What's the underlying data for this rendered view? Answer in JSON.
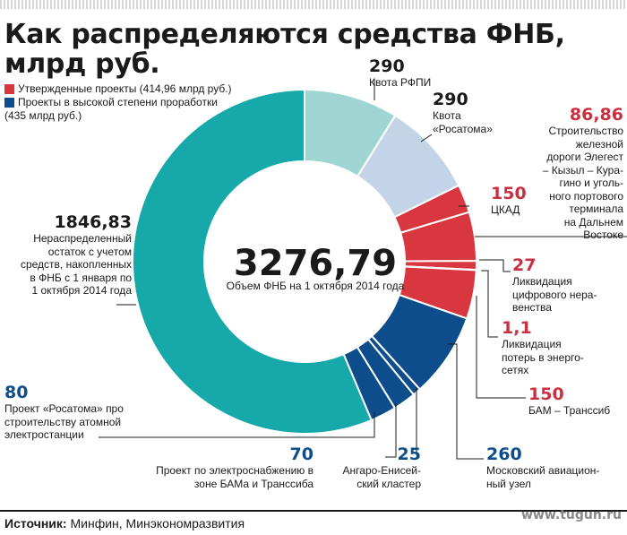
{
  "title_line1": "Как распределяются средства ФНБ,",
  "title_line2": "млрд руб.",
  "legend": {
    "approved": "Утвержденные проекты (414,96 млрд руб.)",
    "high_line1": "Проекты в высокой степени проработки",
    "high_line2": "(435 млрд руб.)"
  },
  "center": {
    "total": "3276,79",
    "caption": "Объем ФНБ на 1 октября 2014 года"
  },
  "source": {
    "label": "Источник:",
    "text": " Минфин, Минэкономразвития"
  },
  "watermark": "www.tugun.ru",
  "colors": {
    "teal": "#17a9a9",
    "light_teal": "#9fd6d3",
    "light_blue": "#c3d3e8",
    "red": "#d8373f",
    "dark_blue": "#0d4d8c",
    "gap": "#ffffff"
  },
  "labels": {
    "rfpi_val": "290",
    "rfpi_l1": "Квота РФПИ",
    "rosatom_val": "290",
    "rosatom_l1": "Квота",
    "rosatom_l2": "«Росатома»",
    "rail_val": "86,86",
    "rail_l1": "Строительство",
    "rail_l2": "железной",
    "rail_l3": "дороги Элегест",
    "rail_l4": "– Кызыл – Кура-",
    "rail_l5": "гино и уголь-",
    "rail_l6": "ного портового",
    "rail_l7": "терминала",
    "rail_l8": "на Дальнем",
    "rail_l9": "Востоке",
    "ckad_val": "150",
    "ckad_l1": "ЦКАД",
    "digital_val": "27",
    "digital_l1": "Ликвидация",
    "digital_l2": "цифрового нера-",
    "digital_l3": "венства",
    "loss_val": "1,1",
    "loss_l1": "Ликвидация",
    "loss_l2": "потерь в энерго-",
    "loss_l3": "сетях",
    "bam_val": "150",
    "bam_l1": "БАМ – Транссиб",
    "mau_val": "260",
    "mau_l1": "Московский авиацион-",
    "mau_l2": "ный узел",
    "angara_val": "25",
    "angara_l1": "Ангаро-Енисей-",
    "angara_l2": "ский кластер",
    "power_val": "70",
    "power_l1": "Проект по электроснабжению в",
    "power_l2": "зоне БАМа и Транссиба",
    "npp_val": "80",
    "npp_l1": "Проект «Росатома» про",
    "npp_l2": "строительству атомной",
    "npp_l3": "электростанции",
    "rem_val": "1846,83",
    "rem_l1": "Нераспределенный",
    "rem_l2": "остаток с учетом",
    "rem_l3": "средств, накопленных",
    "rem_l4": "в ФНБ с 1 января по",
    "rem_l5": "1 октября 2014 года"
  },
  "chart_data": {
    "type": "pie",
    "variant": "donut",
    "total": 3276.79,
    "total_label": "Объем ФНБ на 1 октября 2014 года",
    "title": "Как распределяются средства ФНБ, млрд руб.",
    "legend": [
      "Утвержденные проекты (414,96 млрд руб.)",
      "Проекты в высокой степени проработки (435 млрд руб.)"
    ],
    "order": "clockwise from top",
    "slices": [
      {
        "label": "Квота РФПИ",
        "value": 290,
        "color": "#9fd6d3"
      },
      {
        "label": "Квота «Росатома»",
        "value": 290,
        "color": "#c3d3e8"
      },
      {
        "label": "Строительство железной дороги Элегест – Кызыл – Курагино и угольного портового терминала на Дальнем Востоке",
        "value": 86.86,
        "color": "#d8373f",
        "group": "Утвержденные проекты"
      },
      {
        "label": "ЦКАД",
        "value": 150,
        "color": "#d8373f",
        "group": "Утвержденные проекты"
      },
      {
        "label": "Ликвидация цифрового неравенства",
        "value": 27,
        "color": "#d8373f",
        "group": "Утвержденные проекты"
      },
      {
        "label": "Ликвидация потерь в энергосетях",
        "value": 1.1,
        "color": "#d8373f",
        "group": "Утвержденные проекты"
      },
      {
        "label": "БАМ – Транссиб",
        "value": 150,
        "color": "#d8373f",
        "group": "Утвержденные проекты"
      },
      {
        "label": "Московский авиационный узел",
        "value": 260,
        "color": "#0d4d8c",
        "group": "Проекты в высокой степени проработки"
      },
      {
        "label": "Ангаро-Енисейский кластер",
        "value": 25,
        "color": "#0d4d8c",
        "group": "Проекты в высокой степени проработки"
      },
      {
        "label": "Проект по электроснабжению в зоне БАМа и Транссиба",
        "value": 70,
        "color": "#0d4d8c",
        "group": "Проекты в высокой степени проработки"
      },
      {
        "label": "Проект «Росатома» про строительству атомной электростанции",
        "value": 80,
        "color": "#0d4d8c",
        "group": "Проекты в высокой степени проработки"
      },
      {
        "label": "Нераспределенный остаток с учетом средств, накопленных в ФНБ с 1 января по 1 октября 2014 года",
        "value": 1846.83,
        "color": "#17a9a9"
      }
    ]
  }
}
